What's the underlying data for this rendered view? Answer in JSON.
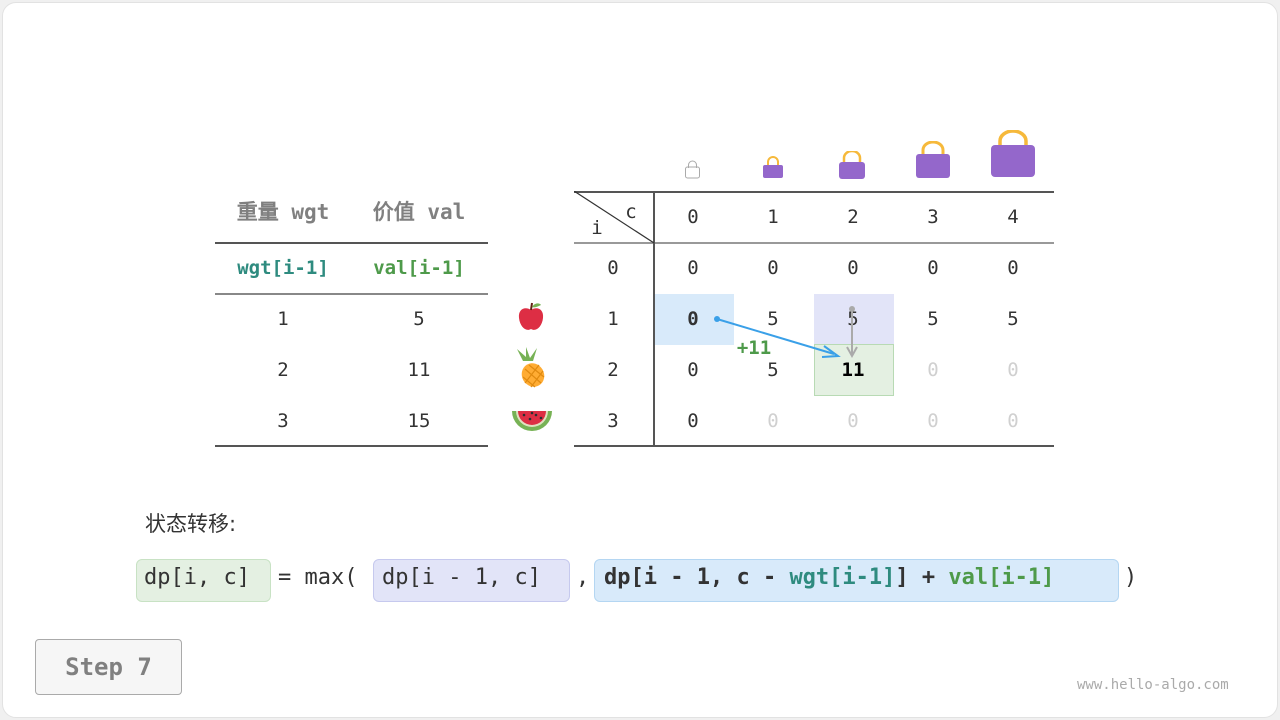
{
  "items_table": {
    "headers": [
      "重量 wgt",
      "价值 val"
    ],
    "subheaders": [
      "wgt[i-1]",
      "val[i-1]"
    ],
    "rows": [
      {
        "wgt": "1",
        "val": "5",
        "fruit": "apple-icon"
      },
      {
        "wgt": "2",
        "val": "11",
        "fruit": "pineapple-icon"
      },
      {
        "wgt": "3",
        "val": "15",
        "fruit": "watermelon-icon"
      }
    ]
  },
  "dp_table": {
    "corner_row_label": "i",
    "corner_col_label": "c",
    "col_headers": [
      "0",
      "1",
      "2",
      "3",
      "4"
    ],
    "row_headers": [
      "0",
      "1",
      "2",
      "3"
    ],
    "cells": [
      [
        "0",
        "0",
        "0",
        "0",
        "0"
      ],
      [
        "0",
        "5",
        "5",
        "5",
        "5"
      ],
      [
        "0",
        "5",
        "11",
        "0",
        "0"
      ],
      [
        "0",
        "0",
        "0",
        "0",
        "0"
      ]
    ],
    "increment_label": "+11",
    "bag_icons": [
      "bag-icon",
      "bag-icon",
      "bag-icon",
      "bag-icon",
      "bag-icon"
    ]
  },
  "transition_label": "状态转移:",
  "formula": {
    "lhs": "dp[i, c]",
    "eq_max": "= max(",
    "opt1": "dp[i - 1, c]",
    "comma": ",",
    "opt2_a": "dp[i - 1, c - ",
    "opt2_wgt": "wgt[i-1]",
    "opt2_b": "] + ",
    "opt2_val": "val[i-1]",
    "close": ")"
  },
  "step_button": "Step 7",
  "watermark": "www.hello-algo.com",
  "colors": {
    "teal": "#2e8b7f",
    "green": "#4e9a4a",
    "blue_hl": "#d8eafa",
    "purple_hl": "#e2e4f8",
    "green_hl": "#e4f0e2",
    "bag": "#9467cb",
    "handle": "#f6b93b",
    "arrow": "#3aa0e8"
  }
}
